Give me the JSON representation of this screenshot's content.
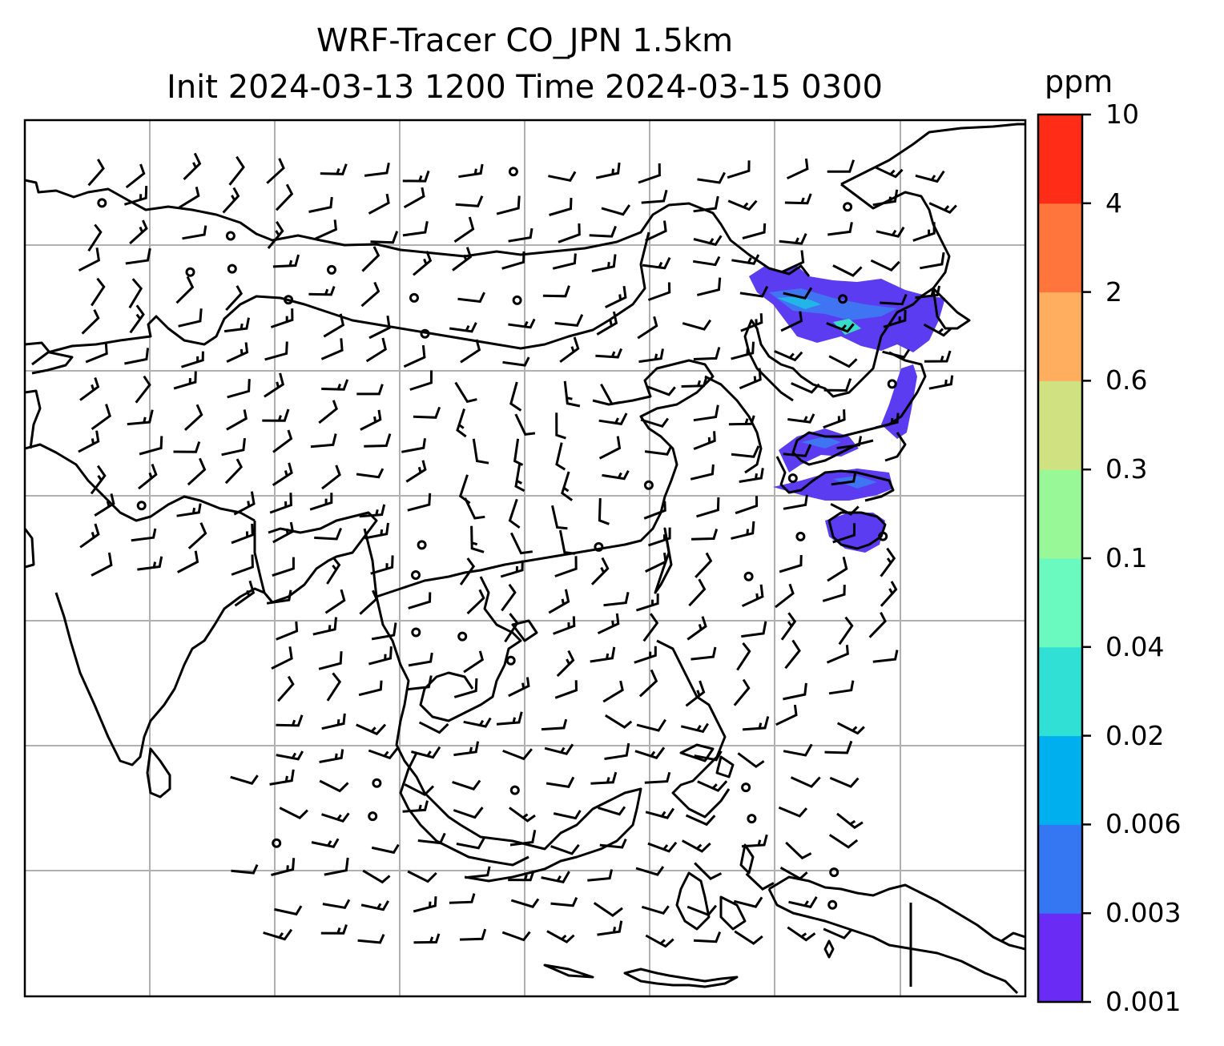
{
  "title": {
    "line1": "WRF-Tracer CO_JPN 1.5km",
    "line2": "Init 2024-03-13 1200 Time 2024-03-15 0300"
  },
  "colorbar": {
    "unit": "ppm",
    "ticks": [
      "0.001",
      "0.003",
      "0.006",
      "0.02",
      "0.04",
      "0.1",
      "0.3",
      "0.6",
      "2",
      "4",
      "10"
    ],
    "colors": [
      "#6a2cf5",
      "#3577f2",
      "#00b0ee",
      "#30e0d4",
      "#6af9bf",
      "#98f797",
      "#d0e182",
      "#ffae5f",
      "#ff753b",
      "#ff2d17"
    ]
  },
  "map": {
    "gridlines": true,
    "plume_color": "#5b3cf0",
    "plume_colors": [
      "#5b3cf0",
      "#3f74f2",
      "#22b6e8",
      "#38dcc6"
    ]
  }
}
